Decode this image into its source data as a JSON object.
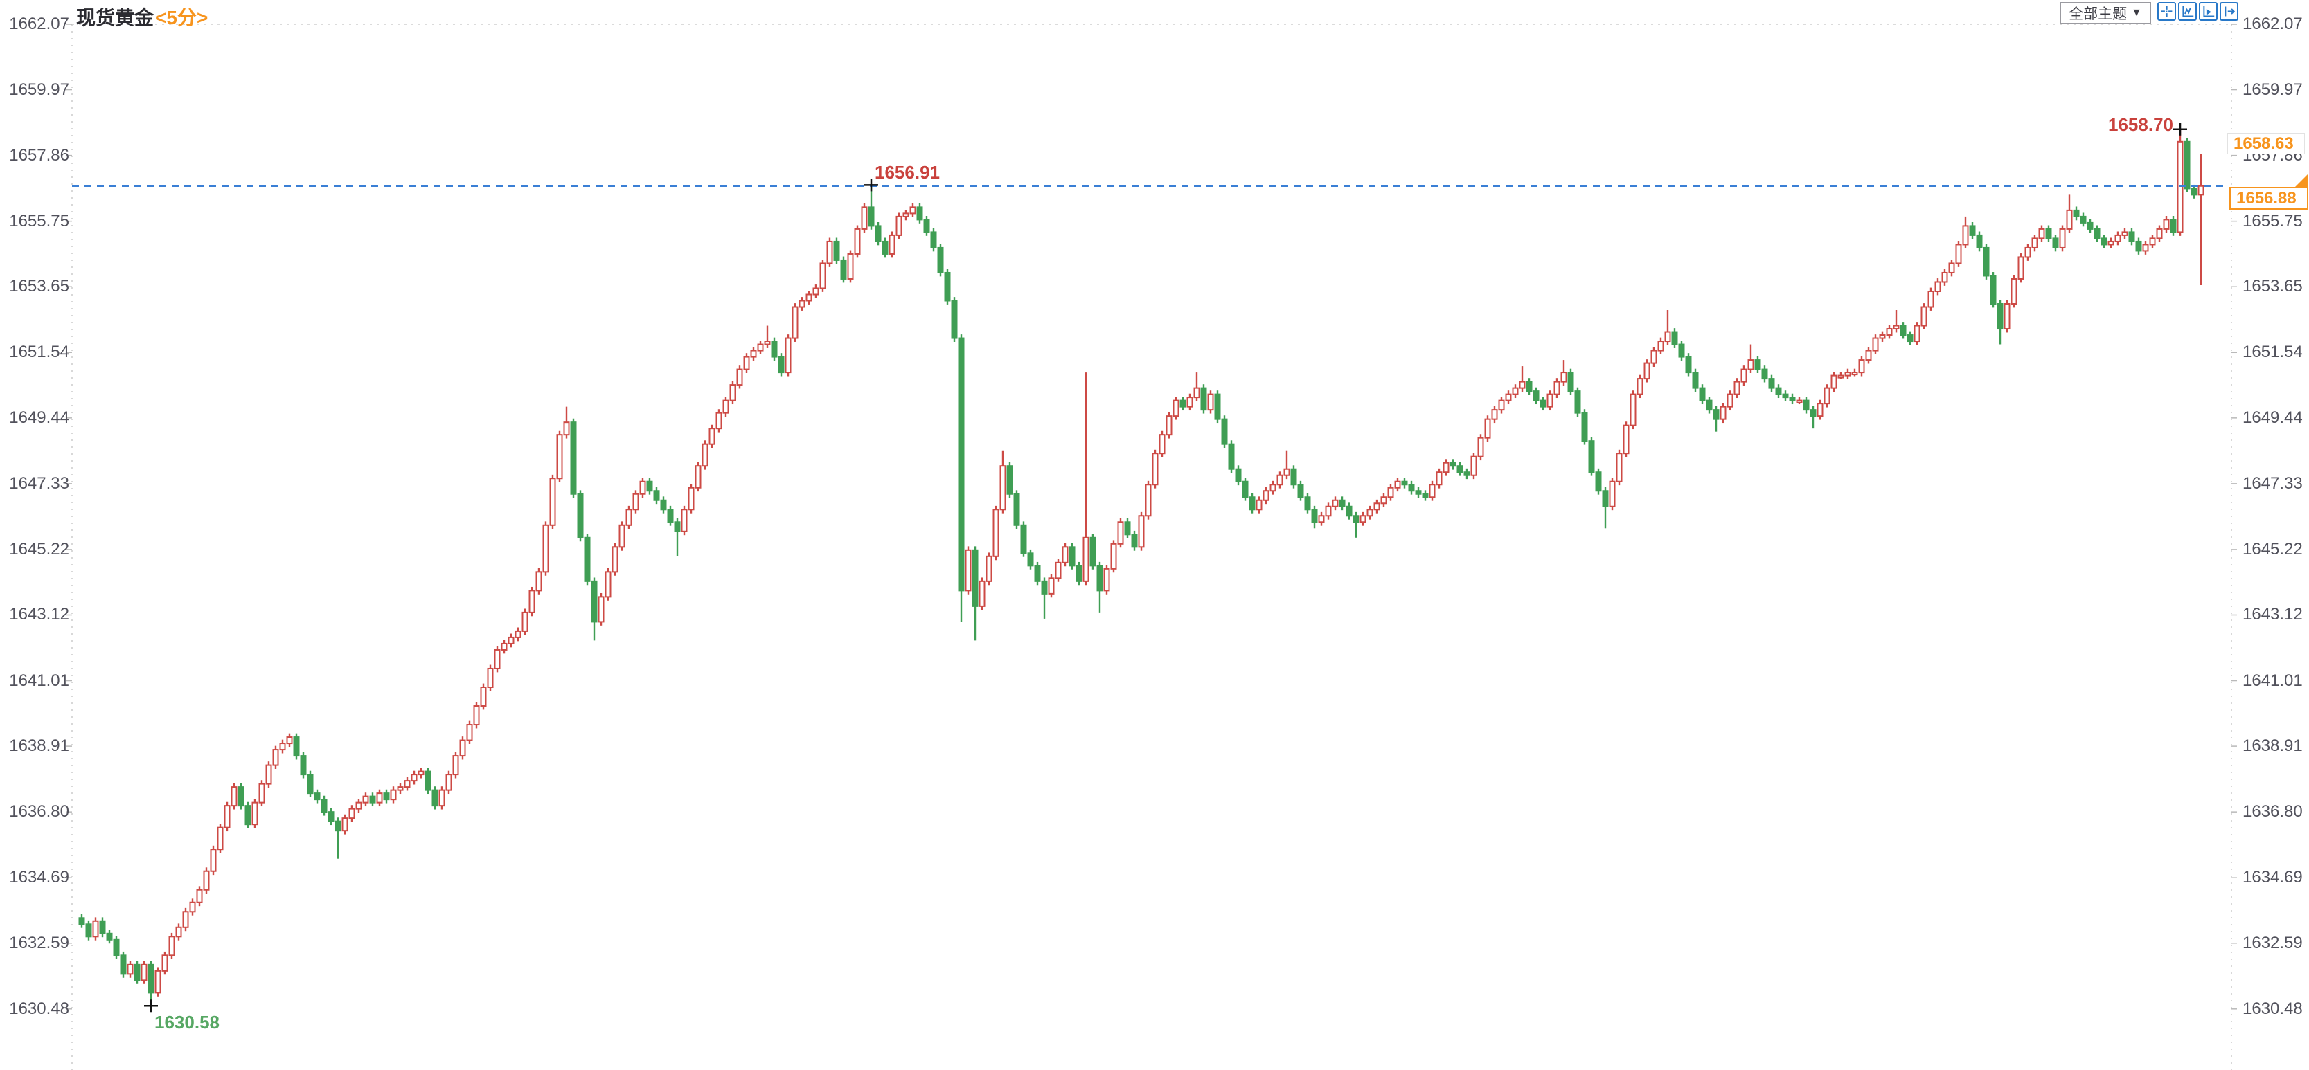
{
  "header": {
    "title": "现货黄金",
    "period": "<5分>"
  },
  "controls": {
    "theme_dropdown": "全部主题",
    "dropdown_arrow": "▼",
    "icons": [
      "crosshair-icon",
      "axis-scale-icon",
      "axis-play-icon",
      "pan-right-icon"
    ]
  },
  "price_labels": {
    "upper": "1658.63",
    "current": "1656.88"
  },
  "colors": {
    "up": "#cd4a45",
    "down": "#3f9e54",
    "accent_orange": "#f7941d",
    "dashed_line": "#3a7fd5",
    "axis_text": "#52525c",
    "annotation_high": "#c9413c",
    "annotation_low": "#56a763",
    "border_dots": "#cfcfcf",
    "toolbar_blue": "#2878c8",
    "marker": "#111111"
  },
  "chart_data": {
    "type": "candlestick",
    "title": "现货黄金 5分 K线图",
    "y_range": [
      1630.48,
      1662.07
    ],
    "y_tick_labels": [
      "1662.07",
      "1659.97",
      "1657.86",
      "1655.75",
      "1653.65",
      "1651.54",
      "1649.44",
      "1647.33",
      "1645.22",
      "1643.12",
      "1641.01",
      "1638.91",
      "1636.80",
      "1634.69",
      "1632.59",
      "1630.48"
    ],
    "y_ticks": [
      1662.07,
      1659.97,
      1657.86,
      1655.75,
      1653.65,
      1651.54,
      1649.44,
      1647.33,
      1645.22,
      1643.12,
      1641.01,
      1638.91,
      1636.8,
      1634.69,
      1632.59,
      1630.48
    ],
    "current_price": 1656.88,
    "grid": false,
    "legend": null,
    "annotations": [
      {
        "name": "session-high",
        "index": 303,
        "price": 1658.7,
        "label": "1658.70",
        "pos": "above-left",
        "color": "#c9413c"
      },
      {
        "name": "swing-high",
        "index": 114,
        "price": 1656.91,
        "label": "1656.91",
        "pos": "above-right",
        "color": "#c9413c"
      },
      {
        "name": "session-low",
        "index": 10,
        "price": 1630.58,
        "label": "1630.58",
        "pos": "below-right",
        "color": "#56a763"
      }
    ],
    "first_open": 1633.4,
    "closes": [
      1633.2,
      1632.8,
      1633.3,
      1632.9,
      1632.7,
      1632.2,
      1631.6,
      1631.9,
      1631.4,
      1631.9,
      1631.0,
      1631.7,
      1632.2,
      1632.8,
      1633.1,
      1633.6,
      1633.9,
      1634.3,
      1634.9,
      1635.6,
      1636.3,
      1637.0,
      1637.6,
      1637.0,
      1636.4,
      1637.1,
      1637.7,
      1638.3,
      1638.8,
      1639.0,
      1639.2,
      1638.6,
      1638.0,
      1637.4,
      1637.2,
      1636.8,
      1636.5,
      1636.2,
      1636.6,
      1636.9,
      1637.1,
      1637.3,
      1637.1,
      1637.4,
      1637.2,
      1637.5,
      1637.6,
      1637.8,
      1638.0,
      1638.1,
      1637.5,
      1637.0,
      1637.5,
      1638.0,
      1638.6,
      1639.1,
      1639.6,
      1640.2,
      1640.8,
      1641.4,
      1642.0,
      1642.2,
      1642.4,
      1642.6,
      1643.2,
      1643.9,
      1644.5,
      1646.0,
      1647.5,
      1648.9,
      1649.3,
      1647.0,
      1645.6,
      1644.2,
      1642.9,
      1643.7,
      1644.5,
      1645.3,
      1646.0,
      1646.5,
      1647.0,
      1647.4,
      1647.1,
      1646.8,
      1646.5,
      1646.1,
      1645.8,
      1646.5,
      1647.2,
      1647.9,
      1648.6,
      1649.1,
      1649.6,
      1650.0,
      1650.5,
      1651.0,
      1651.4,
      1651.6,
      1651.8,
      1651.9,
      1651.4,
      1650.9,
      1652.0,
      1653.0,
      1653.2,
      1653.4,
      1653.6,
      1654.4,
      1655.1,
      1654.5,
      1653.9,
      1654.7,
      1655.5,
      1656.2,
      1655.6,
      1655.1,
      1654.7,
      1655.3,
      1655.9,
      1656.0,
      1656.2,
      1655.8,
      1655.4,
      1654.9,
      1654.1,
      1653.2,
      1652.0,
      1643.9,
      1645.2,
      1643.4,
      1644.2,
      1645.0,
      1646.5,
      1647.9,
      1647.0,
      1646.0,
      1645.1,
      1644.7,
      1644.2,
      1643.8,
      1644.3,
      1644.8,
      1645.3,
      1644.7,
      1644.2,
      1645.6,
      1644.7,
      1643.9,
      1644.6,
      1645.4,
      1646.1,
      1645.7,
      1645.3,
      1646.3,
      1647.3,
      1648.3,
      1648.9,
      1649.5,
      1650.0,
      1649.8,
      1650.1,
      1650.4,
      1649.7,
      1650.2,
      1649.4,
      1648.6,
      1647.8,
      1647.4,
      1646.9,
      1646.5,
      1646.8,
      1647.1,
      1647.3,
      1647.6,
      1647.8,
      1647.3,
      1646.9,
      1646.5,
      1646.1,
      1646.3,
      1646.6,
      1646.8,
      1646.6,
      1646.3,
      1646.1,
      1646.3,
      1646.5,
      1646.7,
      1646.9,
      1647.2,
      1647.4,
      1647.3,
      1647.1,
      1647.0,
      1646.9,
      1647.3,
      1647.7,
      1648.0,
      1647.9,
      1647.7,
      1647.6,
      1648.2,
      1648.8,
      1649.4,
      1649.7,
      1650.0,
      1650.2,
      1650.4,
      1650.6,
      1650.3,
      1650.0,
      1649.8,
      1650.2,
      1650.6,
      1650.9,
      1650.3,
      1649.6,
      1648.7,
      1647.7,
      1647.1,
      1646.6,
      1647.4,
      1648.3,
      1649.2,
      1650.2,
      1650.7,
      1651.2,
      1651.6,
      1651.9,
      1652.2,
      1651.8,
      1651.4,
      1650.9,
      1650.4,
      1650.0,
      1649.7,
      1649.4,
      1649.8,
      1650.2,
      1650.6,
      1651.0,
      1651.3,
      1651.0,
      1650.7,
      1650.4,
      1650.2,
      1650.1,
      1650.0,
      1650.0,
      1649.7,
      1649.5,
      1649.9,
      1650.4,
      1650.8,
      1650.8,
      1650.9,
      1650.9,
      1651.3,
      1651.6,
      1652.0,
      1652.1,
      1652.3,
      1652.4,
      1652.1,
      1651.9,
      1652.4,
      1653.0,
      1653.5,
      1653.8,
      1654.1,
      1654.4,
      1655.0,
      1655.6,
      1655.3,
      1654.9,
      1654.0,
      1653.1,
      1652.3,
      1653.1,
      1653.9,
      1654.6,
      1654.9,
      1655.2,
      1655.5,
      1655.2,
      1654.9,
      1655.5,
      1656.1,
      1655.9,
      1655.7,
      1655.5,
      1655.2,
      1655.0,
      1655.1,
      1655.3,
      1655.4,
      1655.1,
      1654.8,
      1655.0,
      1655.2,
      1655.5,
      1655.8,
      1655.4,
      1658.3,
      1656.8,
      1656.6,
      1656.88
    ],
    "wick_overrides": {
      "10": {
        "l": 1630.58
      },
      "37": {
        "l": 1635.3
      },
      "70": {
        "h": 1649.8
      },
      "74": {
        "l": 1642.3
      },
      "86": {
        "l": 1645.0
      },
      "99": {
        "h": 1652.4
      },
      "114": {
        "h": 1656.91
      },
      "127": {
        "l": 1642.9
      },
      "129": {
        "l": 1642.3
      },
      "133": {
        "h": 1648.4
      },
      "139": {
        "l": 1643.0
      },
      "145": {
        "h": 1650.9
      },
      "147": {
        "l": 1643.2
      },
      "161": {
        "h": 1650.9
      },
      "174": {
        "h": 1648.4
      },
      "178": {
        "l": 1645.9
      },
      "184": {
        "l": 1645.6
      },
      "208": {
        "h": 1651.1
      },
      "214": {
        "h": 1651.3
      },
      "220": {
        "l": 1645.9
      },
      "229": {
        "h": 1652.9
      },
      "236": {
        "l": 1649.0
      },
      "241": {
        "h": 1651.8
      },
      "250": {
        "l": 1649.1
      },
      "262": {
        "h": 1652.9
      },
      "272": {
        "h": 1655.9
      },
      "277": {
        "l": 1651.8
      },
      "287": {
        "h": 1656.6
      },
      "303": {
        "h": 1658.7
      },
      "306": {
        "h": 1657.9,
        "l": 1653.7
      }
    }
  }
}
